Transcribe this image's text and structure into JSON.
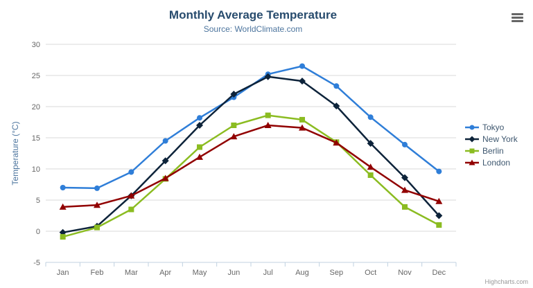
{
  "credit": "Highcharts.com",
  "icons": {
    "menu": "hamburger-menu-icon"
  },
  "chart_data": {
    "type": "line",
    "title": "Monthly Average Temperature",
    "subtitle": "Source: WorldClimate.com",
    "categories": [
      "Jan",
      "Feb",
      "Mar",
      "Apr",
      "May",
      "Jun",
      "Jul",
      "Aug",
      "Sep",
      "Oct",
      "Nov",
      "Dec"
    ],
    "series": [
      {
        "name": "Tokyo",
        "color": "#2f7ed8",
        "marker": "circle",
        "values": [
          7.0,
          6.9,
          9.5,
          14.5,
          18.2,
          21.5,
          25.2,
          26.5,
          23.3,
          18.3,
          13.9,
          9.6
        ]
      },
      {
        "name": "New York",
        "color": "#0d233a",
        "marker": "diamond",
        "values": [
          -0.2,
          0.8,
          5.7,
          11.3,
          17.0,
          22.0,
          24.8,
          24.1,
          20.1,
          14.1,
          8.6,
          2.5
        ]
      },
      {
        "name": "Berlin",
        "color": "#8bbc21",
        "marker": "square",
        "values": [
          -0.9,
          0.6,
          3.5,
          8.4,
          13.5,
          17.0,
          18.6,
          17.9,
          14.3,
          9.0,
          3.9,
          1.0
        ]
      },
      {
        "name": "London",
        "color": "#910000",
        "marker": "triangle",
        "values": [
          3.9,
          4.2,
          5.7,
          8.5,
          11.9,
          15.2,
          17.0,
          16.6,
          14.2,
          10.3,
          6.6,
          4.8
        ]
      }
    ],
    "xlabel": "",
    "ylabel": "Temperature (°C)",
    "ylim": [
      -5,
      30
    ],
    "ytick_step": 5,
    "grid": true,
    "legend_position": "right"
  },
  "colors": {
    "title": "#274b6d",
    "subtitle": "#4d759e",
    "axis_title": "#4d759e",
    "axis_labels": "#666666",
    "grid_line": "#d8d8d8",
    "axis_line": "#c0d0e0",
    "legend_text": "#3e576f",
    "credit": "#999999"
  }
}
